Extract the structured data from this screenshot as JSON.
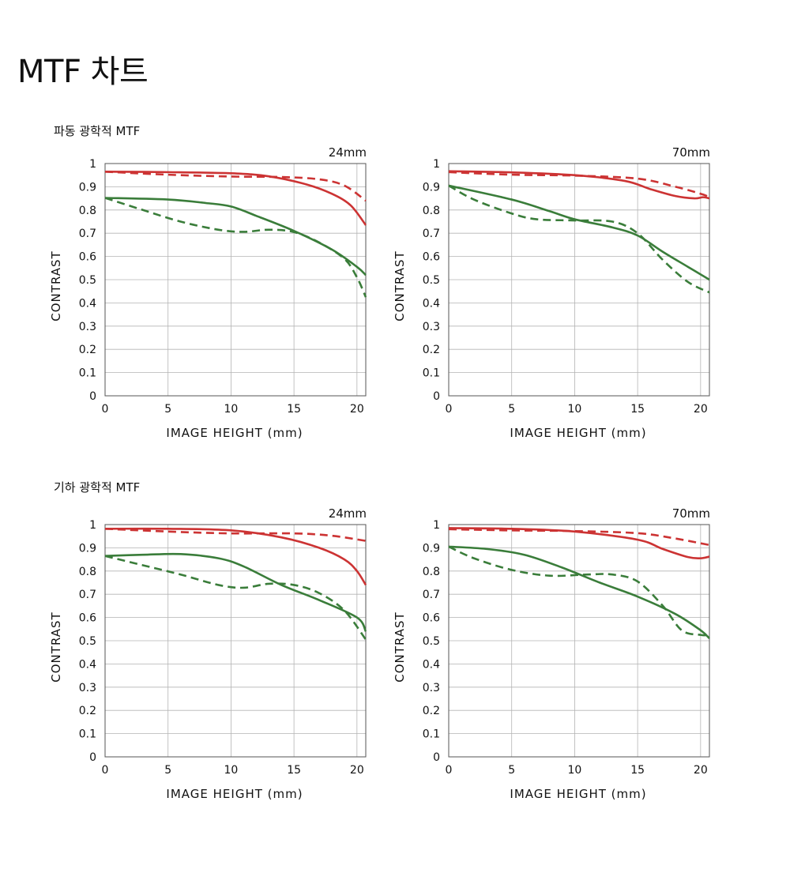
{
  "page": {
    "title": "MTF 차트"
  },
  "sections": [
    {
      "title": "파동 광학적 MTF"
    },
    {
      "title": "기하 광학적 MTF"
    }
  ],
  "legend_colors": {
    "red": "#cc3333",
    "green": "#3a7d3a"
  },
  "chart_data": [
    {
      "type": "line",
      "section": "파동 광학적 MTF",
      "focal_label": "24mm",
      "xlabel": "IMAGE HEIGHT (mm)",
      "ylabel": "CONTRAST",
      "xlim": [
        0,
        20.7
      ],
      "ylim": [
        0,
        1
      ],
      "x_ticks": [
        "0",
        "5",
        "10",
        "15",
        "20"
      ],
      "y_ticks": [
        "0",
        "0.1",
        "0.2",
        "0.3",
        "0.4",
        "0.5",
        "0.6",
        "0.7",
        "0.8",
        "0.9",
        "1"
      ],
      "grid": true,
      "series": [
        {
          "color": "#cc3333",
          "dash": false,
          "x": [
            0,
            5,
            10,
            13,
            16,
            18,
            19.5,
            20.7
          ],
          "y": [
            0.965,
            0.963,
            0.958,
            0.945,
            0.91,
            0.87,
            0.82,
            0.735
          ]
        },
        {
          "color": "#cc3333",
          "dash": true,
          "x": [
            0,
            5,
            10,
            14,
            17,
            19,
            20.7
          ],
          "y": [
            0.965,
            0.952,
            0.944,
            0.942,
            0.932,
            0.905,
            0.84
          ]
        },
        {
          "color": "#3a7d3a",
          "dash": false,
          "x": [
            0,
            5,
            8,
            10,
            12,
            15,
            18,
            20,
            20.7
          ],
          "y": [
            0.852,
            0.845,
            0.83,
            0.815,
            0.775,
            0.71,
            0.63,
            0.555,
            0.52
          ]
        },
        {
          "color": "#3a7d3a",
          "dash": true,
          "x": [
            0,
            3,
            6,
            9,
            11,
            13,
            15,
            17,
            19,
            20,
            20.7
          ],
          "y": [
            0.852,
            0.8,
            0.75,
            0.715,
            0.706,
            0.715,
            0.705,
            0.66,
            0.59,
            0.51,
            0.425
          ]
        }
      ]
    },
    {
      "type": "line",
      "section": "파동 광학적 MTF",
      "focal_label": "70mm",
      "xlabel": "IMAGE HEIGHT (mm)",
      "ylabel": "CONTRAST",
      "xlim": [
        0,
        20.7
      ],
      "ylim": [
        0,
        1
      ],
      "x_ticks": [
        "0",
        "5",
        "10",
        "15",
        "20"
      ],
      "y_ticks": [
        "0",
        "0.1",
        "0.2",
        "0.3",
        "0.4",
        "0.5",
        "0.6",
        "0.7",
        "0.8",
        "0.9",
        "1"
      ],
      "grid": true,
      "series": [
        {
          "color": "#cc3333",
          "dash": false,
          "x": [
            0,
            5,
            10,
            14,
            16,
            18,
            19.5,
            20.2,
            20.7
          ],
          "y": [
            0.967,
            0.962,
            0.95,
            0.925,
            0.89,
            0.86,
            0.85,
            0.855,
            0.85
          ]
        },
        {
          "color": "#cc3333",
          "dash": true,
          "x": [
            0,
            5,
            10,
            15,
            18,
            20,
            20.7
          ],
          "y": [
            0.963,
            0.952,
            0.948,
            0.935,
            0.9,
            0.87,
            0.855
          ]
        },
        {
          "color": "#3a7d3a",
          "dash": false,
          "x": [
            0,
            5,
            8,
            10,
            13,
            15,
            17,
            19,
            20.7
          ],
          "y": [
            0.905,
            0.845,
            0.795,
            0.76,
            0.725,
            0.69,
            0.62,
            0.555,
            0.5
          ]
        },
        {
          "color": "#3a7d3a",
          "dash": true,
          "x": [
            0,
            2,
            5,
            7,
            10,
            13,
            15,
            17,
            19,
            20.7
          ],
          "y": [
            0.905,
            0.845,
            0.785,
            0.76,
            0.755,
            0.75,
            0.7,
            0.585,
            0.49,
            0.445
          ]
        }
      ]
    },
    {
      "type": "line",
      "section": "기하 광학적 MTF",
      "focal_label": "24mm",
      "xlabel": "IMAGE HEIGHT (mm)",
      "ylabel": "CONTRAST",
      "xlim": [
        0,
        20.7
      ],
      "ylim": [
        0,
        1
      ],
      "x_ticks": [
        "0",
        "5",
        "10",
        "15",
        "20"
      ],
      "y_ticks": [
        "0",
        "0.1",
        "0.2",
        "0.3",
        "0.4",
        "0.5",
        "0.6",
        "0.7",
        "0.8",
        "0.9",
        "1"
      ],
      "grid": true,
      "series": [
        {
          "color": "#cc3333",
          "dash": false,
          "x": [
            0,
            5,
            10,
            14,
            17,
            19,
            20,
            20.7
          ],
          "y": [
            0.982,
            0.982,
            0.975,
            0.945,
            0.9,
            0.85,
            0.8,
            0.74
          ]
        },
        {
          "color": "#cc3333",
          "dash": true,
          "x": [
            0,
            5,
            10,
            15,
            18,
            20.7
          ],
          "y": [
            0.982,
            0.97,
            0.962,
            0.962,
            0.952,
            0.93
          ]
        },
        {
          "color": "#3a7d3a",
          "dash": false,
          "x": [
            0,
            3,
            6,
            9,
            11,
            14,
            17,
            20,
            20.7
          ],
          "y": [
            0.865,
            0.87,
            0.873,
            0.855,
            0.82,
            0.74,
            0.675,
            0.6,
            0.54
          ]
        },
        {
          "color": "#3a7d3a",
          "dash": true,
          "x": [
            0,
            3,
            6,
            9,
            11,
            13,
            15,
            17,
            19,
            20.7
          ],
          "y": [
            0.865,
            0.825,
            0.785,
            0.74,
            0.728,
            0.745,
            0.74,
            0.705,
            0.63,
            0.505
          ]
        }
      ]
    },
    {
      "type": "line",
      "section": "기하 광학적 MTF",
      "focal_label": "70mm",
      "xlabel": "IMAGE HEIGHT (mm)",
      "ylabel": "CONTRAST",
      "xlim": [
        0,
        20.7
      ],
      "ylim": [
        0,
        1
      ],
      "x_ticks": [
        "0",
        "5",
        "10",
        "15",
        "20"
      ],
      "y_ticks": [
        "0",
        "0.1",
        "0.2",
        "0.3",
        "0.4",
        "0.5",
        "0.6",
        "0.7",
        "0.8",
        "0.9",
        "1"
      ],
      "grid": true,
      "series": [
        {
          "color": "#cc3333",
          "dash": false,
          "x": [
            0,
            5,
            10,
            15,
            17,
            19,
            20,
            20.7
          ],
          "y": [
            0.985,
            0.982,
            0.97,
            0.935,
            0.895,
            0.86,
            0.855,
            0.862
          ]
        },
        {
          "color": "#cc3333",
          "dash": true,
          "x": [
            0,
            5,
            10,
            15,
            18,
            20.7
          ],
          "y": [
            0.98,
            0.975,
            0.972,
            0.963,
            0.94,
            0.912
          ]
        },
        {
          "color": "#3a7d3a",
          "dash": false,
          "x": [
            0,
            3,
            6,
            9,
            12,
            15,
            18,
            20,
            20.7
          ],
          "y": [
            0.905,
            0.895,
            0.87,
            0.815,
            0.75,
            0.69,
            0.615,
            0.545,
            0.51
          ]
        },
        {
          "color": "#3a7d3a",
          "dash": true,
          "x": [
            0,
            2,
            5,
            8,
            11,
            13,
            15,
            17,
            18.5,
            20,
            20.7
          ],
          "y": [
            0.905,
            0.855,
            0.805,
            0.78,
            0.785,
            0.785,
            0.755,
            0.65,
            0.545,
            0.525,
            0.525
          ]
        }
      ]
    }
  ]
}
